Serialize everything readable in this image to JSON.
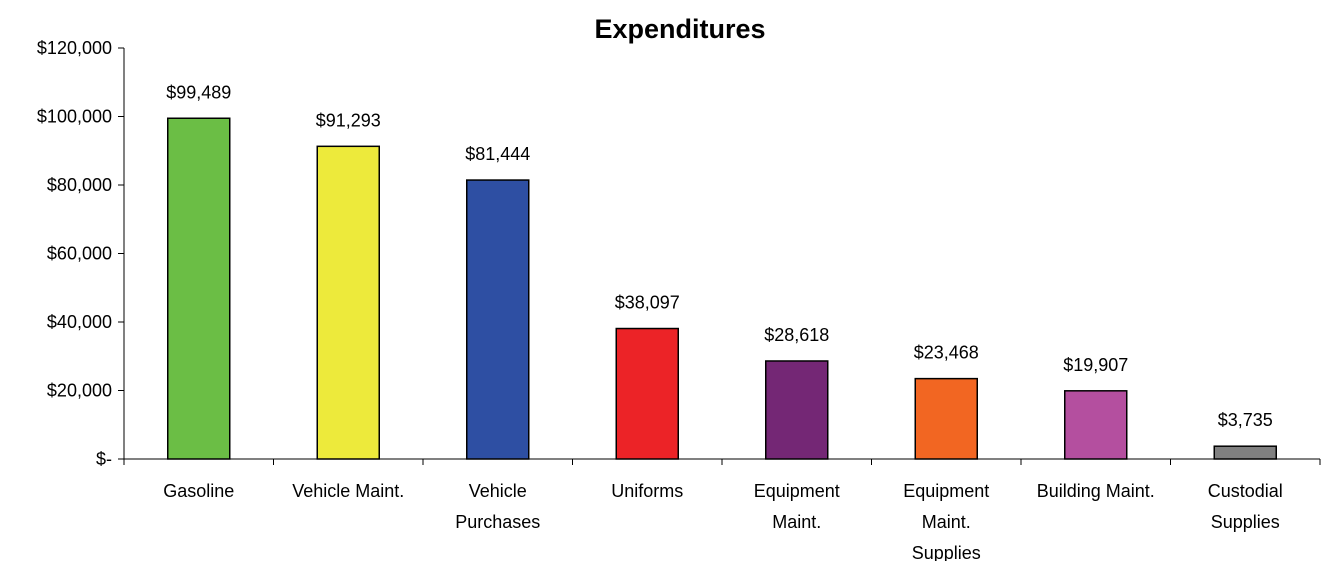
{
  "chart_data": {
    "type": "bar",
    "title": "Expenditures",
    "xlabel": "",
    "ylabel": "",
    "ylim": [
      0,
      120000
    ],
    "yticks": [
      0,
      20000,
      40000,
      60000,
      80000,
      100000,
      120000
    ],
    "ytick_labels": [
      "$-",
      "$20,000",
      "$40,000",
      "$60,000",
      "$80,000",
      "$100,000",
      "$120,000"
    ],
    "grid": false,
    "legend": "none",
    "categories": [
      [
        "Gasoline"
      ],
      [
        "Vehicle Maint."
      ],
      [
        "Vehicle",
        "Purchases"
      ],
      [
        "Uniforms"
      ],
      [
        "Equipment",
        "Maint."
      ],
      [
        "Equipment",
        "Maint.",
        "Supplies"
      ],
      [
        "Building Maint."
      ],
      [
        "Custodial",
        "Supplies"
      ]
    ],
    "values": [
      99489,
      91293,
      81444,
      38097,
      28618,
      23468,
      19907,
      3735
    ],
    "data_labels": [
      "$99,489",
      "$91,293",
      "$81,444",
      "$38,097",
      "$28,618",
      "$23,468",
      "$19,907",
      "$3,735"
    ],
    "colors": [
      "#6BBE45",
      "#EDEA3B",
      "#2E4FA3",
      "#EC2327",
      "#742775",
      "#F26622",
      "#B44F9F",
      "#808080"
    ]
  }
}
